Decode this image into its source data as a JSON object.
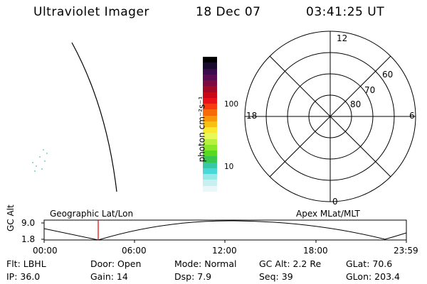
{
  "header": {
    "title": "Ultraviolet Imager",
    "date": "18 Dec 07",
    "time": "03:41:25 UT"
  },
  "colorbar": {
    "unit_label": "photon cm⁻²s⁻¹",
    "tick_labels": [
      "100",
      "10"
    ],
    "colors": [
      "#000000",
      "#1a0a2e",
      "#3a0b4a",
      "#5a0a50",
      "#7a0a40",
      "#a00a28",
      "#c8081a",
      "#e8101a",
      "#f83a10",
      "#f86a08",
      "#f89808",
      "#f8c010",
      "#f8e830",
      "#e8f858",
      "#b8f040",
      "#88e828",
      "#58d820",
      "#38c850",
      "#38c8a8",
      "#48d8d8",
      "#98e8e8",
      "#c8f0f0",
      "#e8f8f8"
    ]
  },
  "polar_plot": {
    "mlt_labels": {
      "top": "12",
      "left": "18",
      "right": "6",
      "bottom": "0"
    },
    "lat_labels": [
      "60",
      "70",
      "80"
    ]
  },
  "timeline": {
    "left_label": "Geographic Lat/Lon",
    "right_label": "Apex  MLat/MLT",
    "y_axis_title": "GC Alt",
    "y_max": "9.0",
    "y_min": "1.8",
    "time_ticks": [
      "00:00",
      "06:00",
      "12:00",
      "18:00",
      "23:59"
    ]
  },
  "info": {
    "flt": "Flt: LBHL",
    "ip": "IP: 36.0",
    "door": "Door: Open",
    "gain": "Gain: 14",
    "mode": "Mode: Normal",
    "dsp": "Dsp:    7.9",
    "gc_alt": "GC Alt: 2.2 Re",
    "seq": "Seq: 39",
    "glat": "GLat:  70.6",
    "glon": "GLon: 203.4"
  }
}
